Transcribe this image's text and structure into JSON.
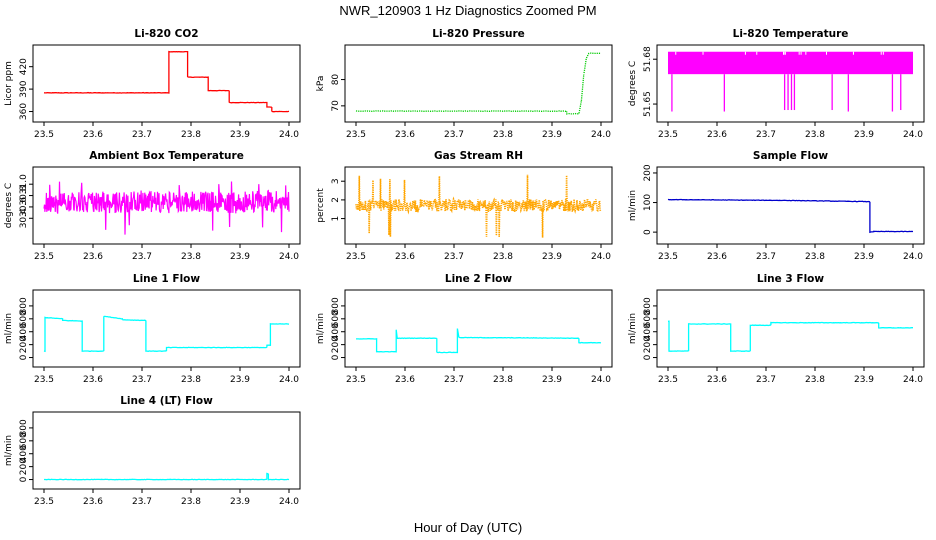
{
  "figure": {
    "title": "NWR_120903  1 Hz Diagnostics Zoomed PM",
    "xlabel": "Hour of Day (UTC)"
  },
  "chart_data": [
    {
      "id": "co2",
      "type": "line",
      "title": "Li-820 CO2",
      "xlabel": "Hour of Day (UTC)",
      "ylabel": "Licor ppm",
      "color": "#ff0000",
      "style": "solid",
      "xlim": [
        23.5,
        24.0
      ],
      "ylim": [
        350,
        445
      ],
      "xticks": [
        "23.5",
        "23.6",
        "23.7",
        "23.8",
        "23.9",
        "24.0"
      ],
      "yticks": [
        "360",
        "390",
        "420"
      ],
      "x": [
        23.5,
        23.755,
        23.755,
        23.793,
        23.793,
        23.835,
        23.835,
        23.878,
        23.878,
        23.955,
        23.955,
        23.965,
        23.965,
        24.0
      ],
      "y": [
        385,
        385,
        440,
        440,
        406,
        406,
        388,
        388,
        372,
        372,
        366,
        366,
        360,
        360
      ]
    },
    {
      "id": "pressure",
      "type": "line",
      "title": "Li-820 Pressure",
      "xlabel": "Hour of Day (UTC)",
      "ylabel": "kPa",
      "color": "#00cc00",
      "style": "dotted",
      "xlim": [
        23.5,
        24.0
      ],
      "ylim": [
        65,
        92
      ],
      "xticks": [
        "23.5",
        "23.6",
        "23.7",
        "23.8",
        "23.9",
        "24.0"
      ],
      "yticks": [
        "70",
        "80"
      ],
      "x": [
        23.5,
        23.93,
        23.93,
        23.955,
        23.96,
        23.965,
        23.97,
        23.975,
        24.0
      ],
      "y": [
        68,
        68,
        67,
        67,
        72,
        82,
        88,
        90,
        90
      ]
    },
    {
      "id": "temp",
      "type": "line",
      "title": "Li-820 Temperature",
      "xlabel": "Hour of Day (UTC)",
      "ylabel": "degrees C",
      "color": "#ff00ff",
      "style": "solid",
      "xlim": [
        23.5,
        24.0
      ],
      "ylim": [
        51.64,
        51.6875
      ],
      "xticks": [
        "23.5",
        "23.6",
        "23.7",
        "23.8",
        "23.9",
        "24.0"
      ],
      "yticks": [
        "51.65",
        "51.68"
      ],
      "band": [
        51.67,
        51.685
      ],
      "dips": [
        {
          "x": 23.508,
          "y": 51.645
        },
        {
          "x": 23.615,
          "y": 51.645
        },
        {
          "x": 23.738,
          "y": 51.646
        },
        {
          "x": 23.745,
          "y": 51.646
        },
        {
          "x": 23.752,
          "y": 51.646
        },
        {
          "x": 23.758,
          "y": 51.646
        },
        {
          "x": 23.835,
          "y": 51.646
        },
        {
          "x": 23.868,
          "y": 51.645
        },
        {
          "x": 23.958,
          "y": 51.645
        },
        {
          "x": 23.975,
          "y": 51.646
        }
      ]
    },
    {
      "id": "ambient",
      "type": "line",
      "title": "Ambient Box Temperature",
      "xlabel": "Hour of Day (UTC)",
      "ylabel": "degrees C",
      "color": "#ff00ff",
      "style": "solid",
      "xlim": [
        23.5,
        24.0
      ],
      "ylim": [
        30.0,
        31.25
      ],
      "xticks": [
        "23.5",
        "23.6",
        "23.7",
        "23.8",
        "23.9",
        "24.0"
      ],
      "yticks": [
        "30.4",
        "30.6",
        "30.8",
        "31.0"
      ],
      "center": 30.68,
      "spread": 0.2,
      "spikes": [
        30.1,
        31.05
      ]
    },
    {
      "id": "rh",
      "type": "line",
      "title": "Gas Stream RH",
      "xlabel": "Hour of Day (UTC)",
      "ylabel": "percent",
      "color": "#ffa500",
      "style": "dotted",
      "xlim": [
        23.5,
        24.0
      ],
      "ylim": [
        -0.2,
        3.6
      ],
      "xticks": [
        "23.5",
        "23.6",
        "23.7",
        "23.8",
        "23.9",
        "24.0"
      ],
      "yticks": [
        "1",
        "2",
        "3"
      ],
      "center": 1.7,
      "spread": 0.35,
      "spikes": [
        -0.1,
        3.4
      ]
    },
    {
      "id": "sample",
      "type": "line",
      "title": "Sample Flow",
      "xlabel": "Hour of Day (UTC)",
      "ylabel": "ml/min",
      "color": "#0000cc",
      "style": "solid",
      "xlim": [
        23.5,
        24.0
      ],
      "ylim": [
        -30,
        210
      ],
      "xticks": [
        "23.5",
        "23.6",
        "23.7",
        "23.8",
        "23.9",
        "24.0"
      ],
      "yticks": [
        "0",
        "100",
        "200"
      ],
      "x": [
        23.5,
        23.75,
        23.912,
        23.912,
        23.92,
        24.0
      ],
      "y": [
        110,
        107,
        103,
        0,
        2,
        2
      ]
    },
    {
      "id": "line1",
      "type": "line",
      "title": "Line 1 Flow",
      "xlabel": "Hour of Day (UTC)",
      "ylabel": "ml/min",
      "color": "#00ffff",
      "style": "solid",
      "xlim": [
        23.5,
        24.0
      ],
      "ylim": [
        -100,
        1000
      ],
      "xticks": [
        "23.5",
        "23.6",
        "23.7",
        "23.8",
        "23.9",
        "24.0"
      ],
      "yticks": [
        "0",
        "200",
        "400",
        "600",
        "800"
      ],
      "x": [
        23.5,
        23.502,
        23.502,
        23.538,
        23.538,
        23.578,
        23.578,
        23.622,
        23.622,
        23.66,
        23.66,
        23.708,
        23.708,
        23.75,
        23.75,
        23.955,
        23.955,
        23.962,
        23.962,
        24.0
      ],
      "y": [
        100,
        100,
        620,
        600,
        575,
        565,
        100,
        100,
        640,
        600,
        585,
        575,
        100,
        100,
        155,
        155,
        190,
        190,
        520,
        520
      ]
    },
    {
      "id": "line2",
      "type": "line",
      "title": "Line 2 Flow",
      "xlabel": "Hour of Day (UTC)",
      "ylabel": "ml/min",
      "color": "#00ffff",
      "style": "solid",
      "xlim": [
        23.5,
        24.0
      ],
      "ylim": [
        -100,
        1000
      ],
      "xticks": [
        "23.5",
        "23.6",
        "23.7",
        "23.8",
        "23.9",
        "24.0"
      ],
      "yticks": [
        "0",
        "200",
        "400",
        "600",
        "800"
      ],
      "x": [
        23.5,
        23.542,
        23.542,
        23.582,
        23.582,
        23.584,
        23.584,
        23.665,
        23.665,
        23.707,
        23.707,
        23.71,
        23.71,
        23.955,
        23.955,
        24.0
      ],
      "y": [
        290,
        290,
        90,
        90,
        430,
        300,
        300,
        300,
        80,
        80,
        450,
        310,
        310,
        300,
        230,
        230
      ]
    },
    {
      "id": "line3",
      "type": "line",
      "title": "Line 3 Flow",
      "xlabel": "Hour of Day (UTC)",
      "ylabel": "ml/min",
      "color": "#00ffff",
      "style": "solid",
      "xlim": [
        23.5,
        24.0
      ],
      "ylim": [
        -100,
        1000
      ],
      "xticks": [
        "23.5",
        "23.6",
        "23.7",
        "23.8",
        "23.9",
        "24.0"
      ],
      "yticks": [
        "0",
        "200",
        "400",
        "600",
        "800"
      ],
      "x": [
        23.5,
        23.502,
        23.502,
        23.542,
        23.542,
        23.628,
        23.628,
        23.668,
        23.668,
        23.71,
        23.71,
        23.93,
        23.93,
        24.0
      ],
      "y": [
        560,
        560,
        100,
        100,
        520,
        520,
        100,
        100,
        500,
        500,
        540,
        540,
        460,
        460
      ]
    },
    {
      "id": "line4",
      "type": "line",
      "title": "Line 4 (LT) Flow",
      "xlabel": "Hour of Day (UTC)",
      "ylabel": "ml/min",
      "color": "#00ffff",
      "style": "solid",
      "xlim": [
        23.5,
        24.0
      ],
      "ylim": [
        -100,
        1000
      ],
      "xticks": [
        "23.5",
        "23.6",
        "23.7",
        "23.8",
        "23.9",
        "24.0"
      ],
      "yticks": [
        "0",
        "200",
        "400",
        "600",
        "800"
      ],
      "x": [
        23.5,
        23.955,
        23.955,
        23.958,
        23.958,
        24.0
      ],
      "y": [
        0,
        0,
        90,
        90,
        0,
        0
      ]
    }
  ]
}
